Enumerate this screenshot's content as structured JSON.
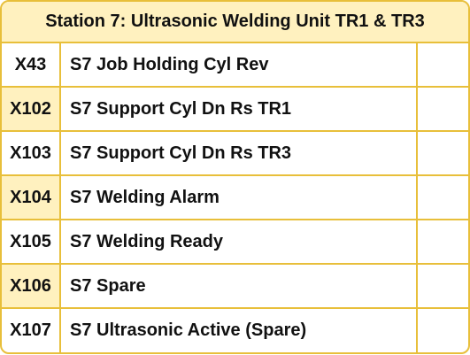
{
  "table": {
    "title": "Station 7: Ultrasonic Welding Unit TR1 & TR3",
    "rows": [
      {
        "address": "X43",
        "description": "S7 Job Holding Cyl Rev",
        "shaded": false
      },
      {
        "address": "X102",
        "description": "S7 Support Cyl Dn Rs TR1",
        "shaded": true
      },
      {
        "address": "X103",
        "description": "S7 Support Cyl Dn Rs TR3",
        "shaded": false
      },
      {
        "address": "X104",
        "description": "S7 Welding Alarm",
        "shaded": true
      },
      {
        "address": "X105",
        "description": "S7 Welding Ready",
        "shaded": false
      },
      {
        "address": "X106",
        "description": "S7 Spare",
        "shaded": true
      },
      {
        "address": "X107",
        "description": "S7 Ultrasonic Active (Spare)",
        "shaded": false
      }
    ]
  },
  "colors": {
    "border": "#E8BF3A",
    "header_bg": "#FFF1BF",
    "shade_bg": "#FFF1BF",
    "text": "#111111"
  }
}
